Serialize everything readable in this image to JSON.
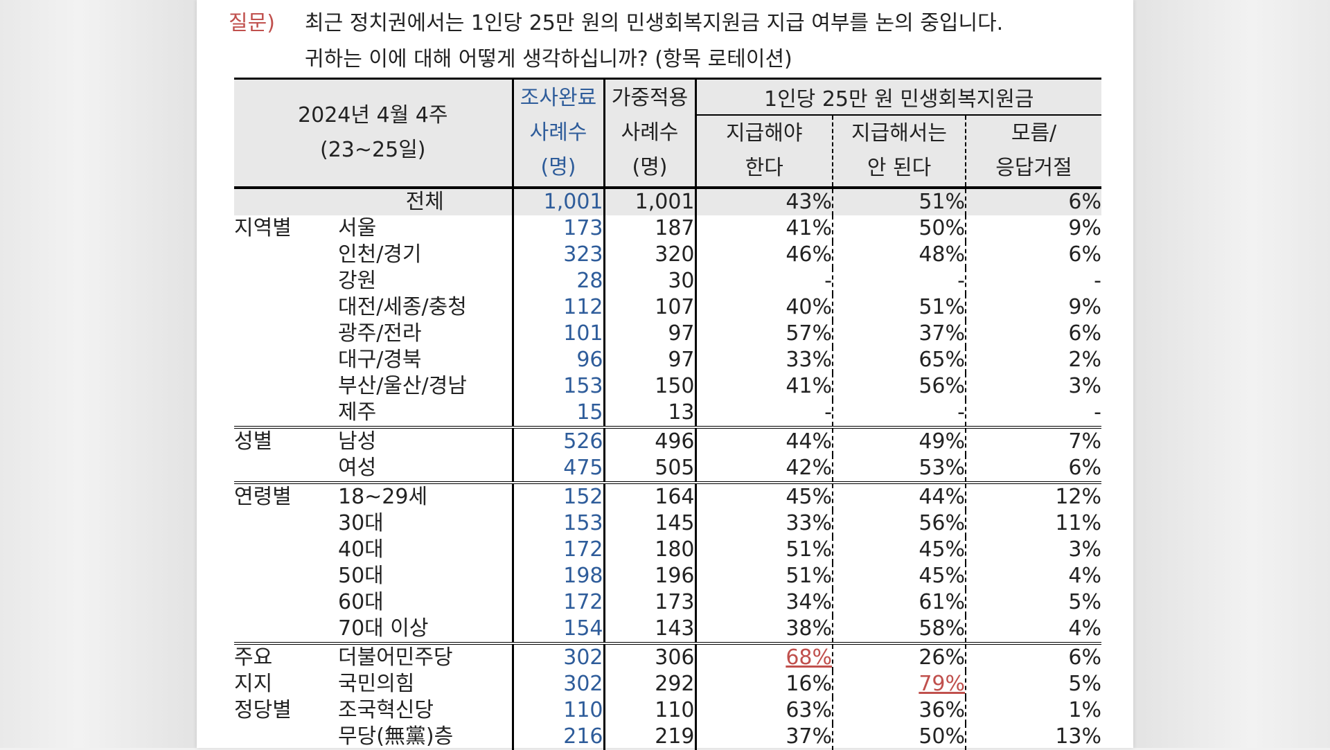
{
  "question": {
    "label": "질문)",
    "line1": "최근 정치권에서는 1인당 25만 원의 민생회복지원금 지급 여부를 논의 중입니다.",
    "line2": "귀하는 이에 대해 어떻게 생각하십니까? (항목 로테이션)"
  },
  "header": {
    "period_line1": "2024년 4월 4주",
    "period_line2": "(23~25일)",
    "completed_line1": "조사완료",
    "completed_line2": "사례수",
    "completed_line3": "(명)",
    "weighted_line1": "가중적용",
    "weighted_line2": "사례수",
    "weighted_line3": "(명)",
    "group_title": "1인당 25만 원 민생회복지원금",
    "col_a_line1": "지급해야",
    "col_a_line2": "한다",
    "col_b_line1": "지급해서는",
    "col_b_line2": "안 된다",
    "col_c_line1": "모름/",
    "col_c_line2": "응답거절"
  },
  "rows": [
    {
      "group": "",
      "sub": "전체",
      "completed": "1,001",
      "weighted": "1,001",
      "yes": "43%",
      "no": "51%",
      "dk": "6%"
    },
    {
      "group": "지역별",
      "sub": "서울",
      "completed": "173",
      "weighted": "187",
      "yes": "41%",
      "no": "50%",
      "dk": "9%"
    },
    {
      "group": "",
      "sub": "인천/경기",
      "completed": "323",
      "weighted": "320",
      "yes": "46%",
      "no": "48%",
      "dk": "6%"
    },
    {
      "group": "",
      "sub": "강원",
      "completed": "28",
      "weighted": "30",
      "yes": "-",
      "no": "-",
      "dk": "-"
    },
    {
      "group": "",
      "sub": "대전/세종/충청",
      "completed": "112",
      "weighted": "107",
      "yes": "40%",
      "no": "51%",
      "dk": "9%"
    },
    {
      "group": "",
      "sub": "광주/전라",
      "completed": "101",
      "weighted": "97",
      "yes": "57%",
      "no": "37%",
      "dk": "6%"
    },
    {
      "group": "",
      "sub": "대구/경북",
      "completed": "96",
      "weighted": "97",
      "yes": "33%",
      "no": "65%",
      "dk": "2%"
    },
    {
      "group": "",
      "sub": "부산/울산/경남",
      "completed": "153",
      "weighted": "150",
      "yes": "41%",
      "no": "56%",
      "dk": "3%"
    },
    {
      "group": "",
      "sub": "제주",
      "completed": "15",
      "weighted": "13",
      "yes": "-",
      "no": "-",
      "dk": "-"
    },
    {
      "group": "성별",
      "sub": "남성",
      "completed": "526",
      "weighted": "496",
      "yes": "44%",
      "no": "49%",
      "dk": "7%"
    },
    {
      "group": "",
      "sub": "여성",
      "completed": "475",
      "weighted": "505",
      "yes": "42%",
      "no": "53%",
      "dk": "6%"
    },
    {
      "group": "연령별",
      "sub": "18~29세",
      "completed": "152",
      "weighted": "164",
      "yes": "45%",
      "no": "44%",
      "dk": "12%"
    },
    {
      "group": "",
      "sub": "30대",
      "completed": "153",
      "weighted": "145",
      "yes": "33%",
      "no": "56%",
      "dk": "11%"
    },
    {
      "group": "",
      "sub": "40대",
      "completed": "172",
      "weighted": "180",
      "yes": "51%",
      "no": "45%",
      "dk": "3%"
    },
    {
      "group": "",
      "sub": "50대",
      "completed": "198",
      "weighted": "196",
      "yes": "51%",
      "no": "45%",
      "dk": "4%"
    },
    {
      "group": "",
      "sub": "60대",
      "completed": "172",
      "weighted": "173",
      "yes": "34%",
      "no": "61%",
      "dk": "5%"
    },
    {
      "group": "",
      "sub": "70대 이상",
      "completed": "154",
      "weighted": "143",
      "yes": "38%",
      "no": "58%",
      "dk": "4%"
    },
    {
      "group": "주요",
      "sub": "더불어민주당",
      "completed": "302",
      "weighted": "306",
      "yes": "68%",
      "no": "26%",
      "dk": "6%"
    },
    {
      "group": "지지",
      "sub": "국민의힘",
      "completed": "302",
      "weighted": "292",
      "yes": "16%",
      "no": "79%",
      "dk": "5%"
    },
    {
      "group": "정당별",
      "sub": "조국혁신당",
      "completed": "110",
      "weighted": "110",
      "yes": "63%",
      "no": "36%",
      "dk": "1%"
    },
    {
      "group": "",
      "sub": "무당(無黨)층",
      "completed": "216",
      "weighted": "219",
      "yes": "37%",
      "no": "50%",
      "dk": "13%"
    }
  ],
  "colors": {
    "accent_red": "#c0504d",
    "accent_blue": "#2e5c9a",
    "header_fill": "#e8e8e8"
  }
}
